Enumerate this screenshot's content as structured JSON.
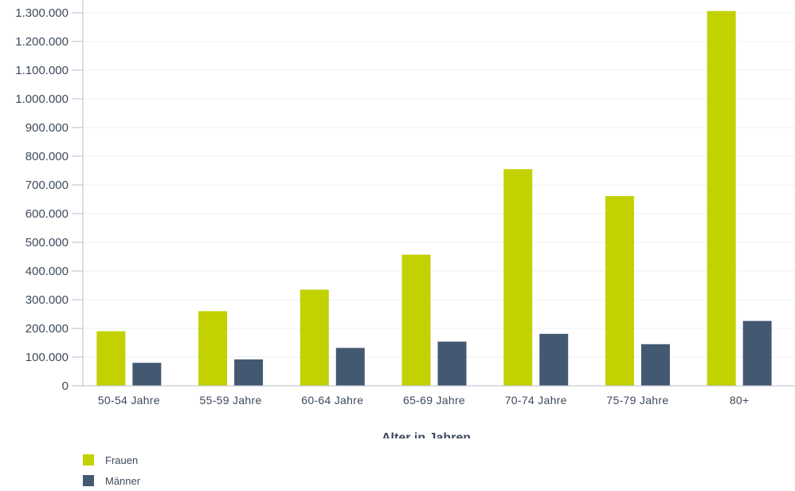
{
  "chart_data": {
    "type": "bar",
    "categories": [
      "50-54 Jahre",
      "55-59 Jahre",
      "60-64 Jahre",
      "65-69 Jahre",
      "70-74 Jahre",
      "75-79 Jahre",
      "80+"
    ],
    "series": [
      {
        "name": "Frauen",
        "color": "#c2d100",
        "values": [
          190000,
          260000,
          335000,
          457000,
          755000,
          661000,
          1306000
        ]
      },
      {
        "name": "Männer",
        "color": "#435971",
        "values": [
          80000,
          92000,
          132000,
          154000,
          181000,
          145000,
          226000
        ]
      }
    ],
    "title": "",
    "xlabel": "Alter in Jahren",
    "ylabel": "",
    "ylim": [
      0,
      1300000
    ],
    "yticks": [
      0,
      100000,
      200000,
      300000,
      400000,
      500000,
      600000,
      700000,
      800000,
      900000,
      1000000,
      1100000,
      1200000,
      1300000
    ],
    "ytick_labels": [
      "0",
      "100.000",
      "200.000",
      "300.000",
      "400.000",
      "500.000",
      "600.000",
      "700.000",
      "800.000",
      "900.000",
      "1.000.000",
      "1.100.000",
      "1.200.000",
      "1.300.000"
    ],
    "grid": true,
    "legend": "bottom-left"
  }
}
